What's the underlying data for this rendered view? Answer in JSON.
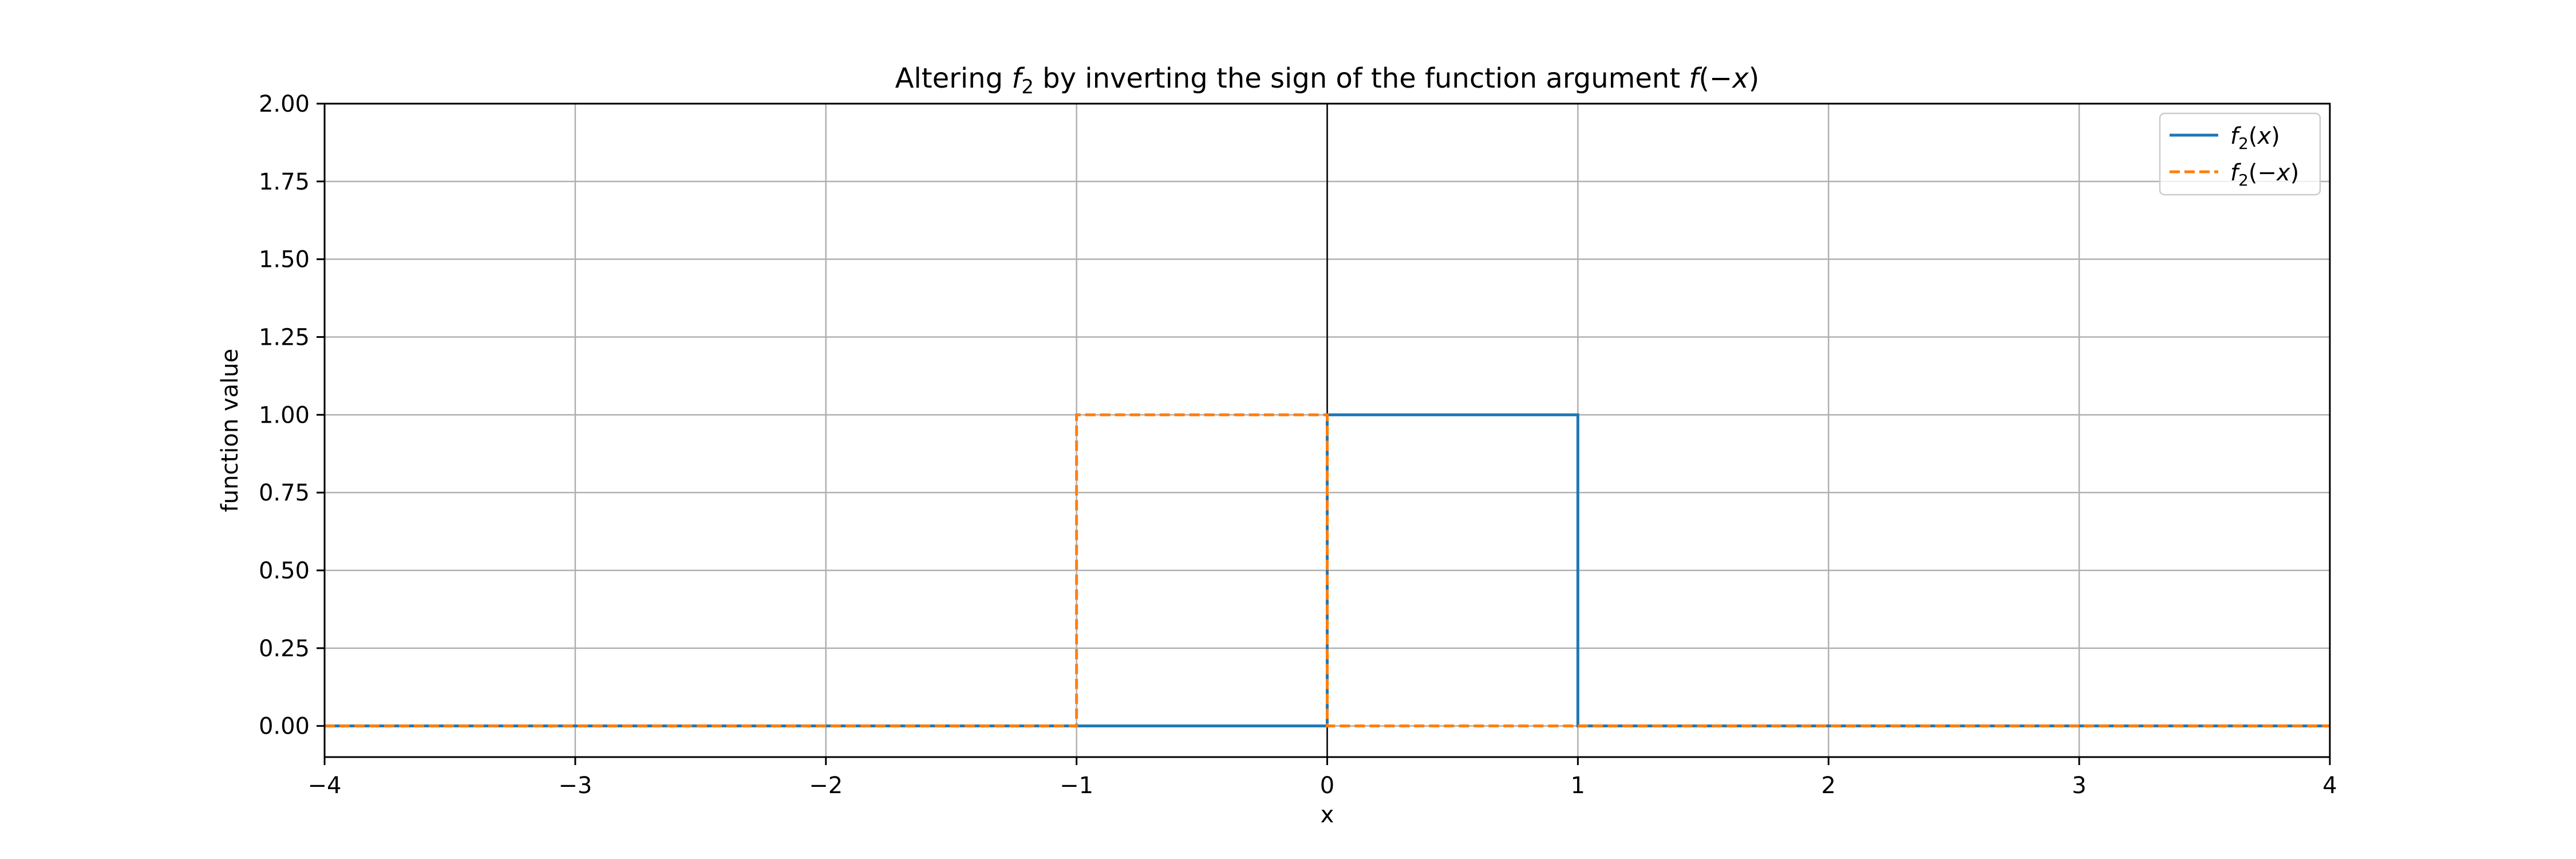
{
  "chart_data": {
    "type": "line",
    "title": "Altering f₂ by inverting the sign of the function argument f(−x)",
    "title_parts": {
      "prefix": "Altering ",
      "func": "f",
      "func_sub": "2",
      "middle": " by inverting the sign of the function argument ",
      "arg_expr": "f",
      "arg_paren": "(−",
      "arg_var": "x",
      "arg_close": ")"
    },
    "xlabel": "x",
    "ylabel": "function value",
    "xlim": [
      -4,
      4
    ],
    "ylim": [
      -0.1,
      2.0
    ],
    "xticks": [
      -4,
      -3,
      -2,
      -1,
      0,
      1,
      2,
      3,
      4
    ],
    "xtick_labels": [
      "−4",
      "−3",
      "−2",
      "−1",
      "0",
      "1",
      "2",
      "3",
      "4"
    ],
    "yticks": [
      0,
      0.25,
      0.5,
      0.75,
      1.0,
      1.25,
      1.5,
      1.75,
      2.0
    ],
    "ytick_labels": [
      "0.00",
      "0.25",
      "0.50",
      "0.75",
      "1.00",
      "1.25",
      "1.50",
      "1.75",
      "2.00"
    ],
    "grid": true,
    "zero_line_x": 0,
    "legend_position": "top-right",
    "series": [
      {
        "name": "f₂(x)",
        "label_parts": {
          "func": "f",
          "sub": "2",
          "open": "(",
          "var": "x",
          "close": ")"
        },
        "color": "#1f77b4",
        "style": "solid",
        "x": [
          -4,
          0,
          0,
          1,
          1,
          4
        ],
        "y": [
          0,
          0,
          1,
          1,
          0,
          0
        ]
      },
      {
        "name": "f₂(−x)",
        "label_parts": {
          "func": "f",
          "sub": "2",
          "open": "(−",
          "var": "x",
          "close": ")"
        },
        "color": "#ff7f0e",
        "style": "dashed",
        "x": [
          -4,
          -1,
          -1,
          0,
          0,
          4
        ],
        "y": [
          0,
          0,
          1,
          1,
          0,
          0
        ]
      }
    ]
  }
}
